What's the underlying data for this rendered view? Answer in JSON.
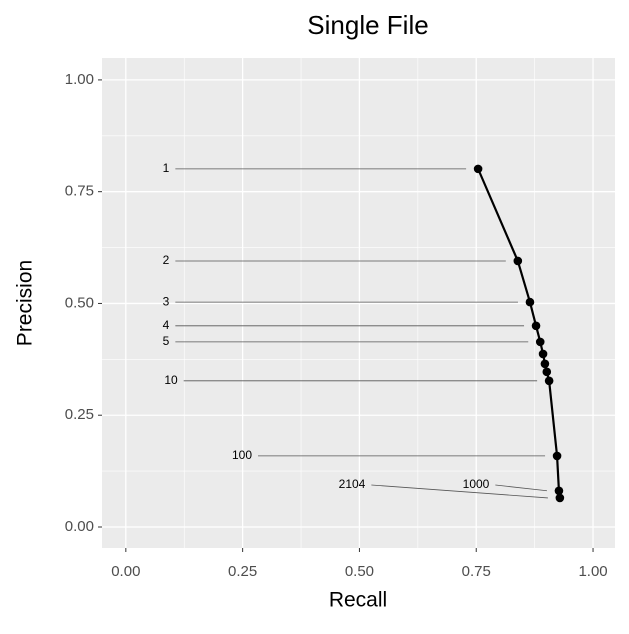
{
  "chart_data": {
    "type": "line",
    "title": "Single File",
    "x_label": "Recall",
    "y_label": "Precision",
    "series": [
      {
        "name": "Single File",
        "color": "#000000",
        "x": [
          0.754,
          0.839,
          0.865,
          0.878,
          0.887,
          0.893,
          0.897,
          0.901,
          0.906,
          0.923,
          0.927,
          0.929
        ],
        "y": [
          0.801,
          0.595,
          0.503,
          0.45,
          0.414,
          0.387,
          0.365,
          0.347,
          0.327,
          0.159,
          0.081,
          0.065
        ]
      }
    ],
    "point_labels": [
      "1",
      "2",
      "3",
      "4",
      "5",
      null,
      null,
      null,
      "10",
      "100",
      "1000",
      "2104"
    ],
    "xlim": [
      -0.051,
      1.047
    ],
    "ylim": [
      -0.047,
      1.049
    ],
    "xticks": [
      {
        "value": 0,
        "label": "0.00"
      },
      {
        "value": 0.25,
        "label": "0.25"
      },
      {
        "value": 0.5,
        "label": "0.50"
      },
      {
        "value": 0.75,
        "label": "0.75"
      },
      {
        "value": 1,
        "label": "1.00"
      }
    ],
    "yticks": [
      {
        "value": 0,
        "label": "0.00"
      },
      {
        "value": 0.25,
        "label": "0.25"
      },
      {
        "value": 0.5,
        "label": "0.50"
      },
      {
        "value": 0.75,
        "label": "0.75"
      },
      {
        "value": 1,
        "label": "1.00"
      }
    ],
    "grid": true
  }
}
